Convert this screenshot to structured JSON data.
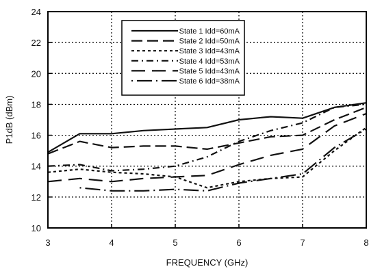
{
  "chart_data": {
    "type": "line",
    "title": "",
    "xlabel": "FREQUENCY (GHz)",
    "ylabel": "P1dB (dBm)",
    "xlim": [
      3,
      8
    ],
    "ylim": [
      10,
      24
    ],
    "x_ticks": [
      3,
      4,
      5,
      6,
      7,
      8
    ],
    "y_ticks": [
      10,
      12,
      14,
      16,
      18,
      20,
      22,
      24
    ],
    "grid": "dotted",
    "legend_position": "top-center",
    "series": [
      {
        "name": "State 1 Idd=60mA",
        "dash": "solid",
        "points": [
          [
            3.0,
            14.9
          ],
          [
            3.5,
            16.1
          ],
          [
            4.0,
            16.1
          ],
          [
            4.5,
            16.3
          ],
          [
            5.0,
            16.4
          ],
          [
            5.5,
            16.5
          ],
          [
            6.0,
            17.0
          ],
          [
            6.5,
            17.2
          ],
          [
            7.0,
            17.1
          ],
          [
            7.5,
            17.8
          ],
          [
            8.0,
            18.1
          ]
        ]
      },
      {
        "name": "State 2 Idd=50mA",
        "dash": "long-dash",
        "points": [
          [
            3.0,
            14.8
          ],
          [
            3.5,
            15.6
          ],
          [
            4.0,
            15.2
          ],
          [
            4.5,
            15.3
          ],
          [
            5.0,
            15.3
          ],
          [
            5.5,
            15.1
          ],
          [
            6.0,
            15.5
          ],
          [
            6.5,
            15.9
          ],
          [
            7.0,
            16.0
          ],
          [
            7.5,
            17.0
          ],
          [
            8.0,
            17.8
          ]
        ]
      },
      {
        "name": "State 3 Idd=43mA",
        "dash": "short-dash",
        "points": [
          [
            3.0,
            13.6
          ],
          [
            3.5,
            13.8
          ],
          [
            4.0,
            13.6
          ],
          [
            4.5,
            13.5
          ],
          [
            5.0,
            13.3
          ],
          [
            5.5,
            12.6
          ],
          [
            6.0,
            13.0
          ],
          [
            6.5,
            13.2
          ],
          [
            7.0,
            13.3
          ],
          [
            7.5,
            15.0
          ],
          [
            8.0,
            16.5
          ]
        ]
      },
      {
        "name": "State 4 Idd=53mA",
        "dash": "dash-dot",
        "points": [
          [
            3.0,
            14.0
          ],
          [
            3.5,
            14.1
          ],
          [
            4.0,
            13.7
          ],
          [
            4.5,
            13.8
          ],
          [
            5.0,
            14.0
          ],
          [
            5.5,
            14.6
          ],
          [
            6.0,
            15.6
          ],
          [
            6.5,
            16.3
          ],
          [
            7.0,
            16.8
          ],
          [
            7.5,
            17.8
          ],
          [
            8.0,
            18.0
          ]
        ]
      },
      {
        "name": "State 5 Idd=43mA",
        "dash": "dash-gap",
        "points": [
          [
            3.0,
            13.0
          ],
          [
            3.5,
            13.2
          ],
          [
            4.0,
            13.0
          ],
          [
            4.5,
            13.2
          ],
          [
            5.0,
            13.3
          ],
          [
            5.5,
            13.4
          ],
          [
            6.0,
            14.1
          ],
          [
            6.5,
            14.7
          ],
          [
            7.0,
            15.1
          ],
          [
            7.5,
            16.6
          ],
          [
            8.0,
            17.4
          ]
        ]
      },
      {
        "name": "State 6 Idd=38mA",
        "dash": "dot-dash",
        "points": [
          [
            3.5,
            12.6
          ],
          [
            4.0,
            12.4
          ],
          [
            4.5,
            12.4
          ],
          [
            5.0,
            12.5
          ],
          [
            5.5,
            12.4
          ],
          [
            6.0,
            12.9
          ],
          [
            6.5,
            13.2
          ],
          [
            7.0,
            13.5
          ],
          [
            7.5,
            15.2
          ],
          [
            8.0,
            16.4
          ]
        ]
      }
    ]
  }
}
